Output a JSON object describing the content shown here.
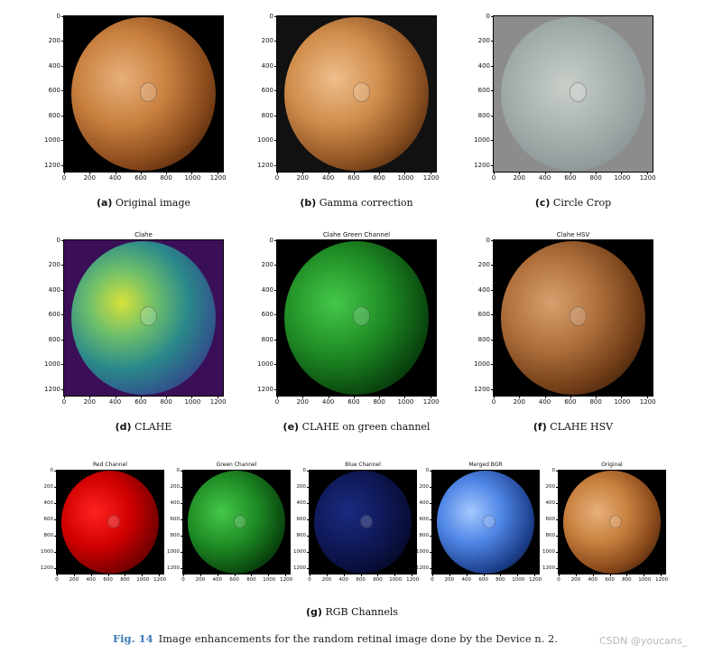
{
  "panels": [
    {
      "id": "a",
      "title": "",
      "caption_letter": "(a)",
      "caption_text": "Original image",
      "style": "orig"
    },
    {
      "id": "b",
      "title": "",
      "caption_letter": "(b)",
      "caption_text": "Gamma correction",
      "style": "gamma"
    },
    {
      "id": "c",
      "title": "",
      "caption_letter": "(c)",
      "caption_text": "Circle Crop",
      "style": "circle"
    },
    {
      "id": "d",
      "title": "Clahe",
      "caption_letter": "(d)",
      "caption_text": "CLAHE",
      "style": "clahe"
    },
    {
      "id": "e",
      "title": "Clahe Green Channel",
      "caption_letter": "(e)",
      "caption_text": "CLAHE on green channel",
      "style": "green"
    },
    {
      "id": "f",
      "title": "Clahe HSV",
      "caption_letter": "(f)",
      "caption_text": "CLAHE HSV",
      "style": "hsv"
    }
  ],
  "small_panels": [
    {
      "title": "Red Channel",
      "style": "red"
    },
    {
      "title": "Green Channel",
      "style": "green"
    },
    {
      "title": "Blue Channel",
      "style": "blue"
    },
    {
      "title": "Merged BGR",
      "style": "merged"
    },
    {
      "title": "Original",
      "style": "orig"
    }
  ],
  "small_caption": {
    "letter": "(g)",
    "text": "RGB Channels"
  },
  "y_ticks": [
    "0",
    "200",
    "400",
    "600",
    "800",
    "1000",
    "1200"
  ],
  "x_ticks": [
    "0",
    "200",
    "400",
    "600",
    "800",
    "1000",
    "1200"
  ],
  "figure_caption": {
    "label": "Fig. 14",
    "text": "Image enhancements for the random retinal image done by the Device n. 2."
  },
  "watermark": "CSDN @youcans_"
}
